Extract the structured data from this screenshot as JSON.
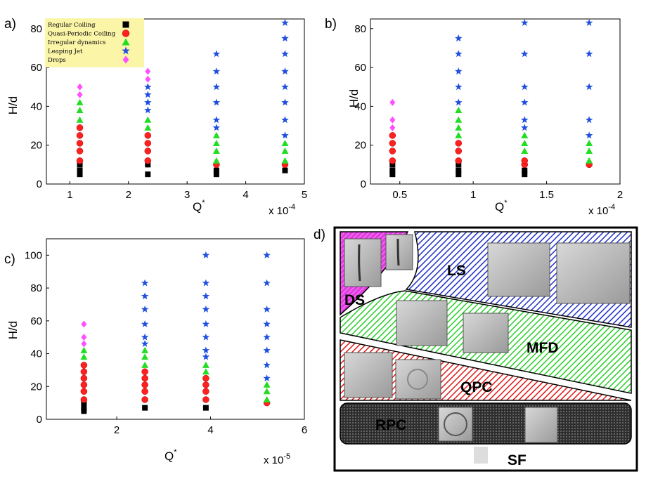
{
  "panels": {
    "a": {
      "label": "a)",
      "xlabel": "Q",
      "xlabel_sup": "*",
      "ylabel": "H/d",
      "exp_label": "x 10",
      "exp_sup": "-4"
    },
    "b": {
      "label": "b)",
      "xlabel": "Q",
      "xlabel_sup": "*",
      "ylabel": "H/d",
      "exp_label": "x 10",
      "exp_sup": "-4"
    },
    "c": {
      "label": "c)",
      "xlabel": "Q",
      "xlabel_sup": "*",
      "ylabel": "H/d",
      "exp_label": "x 10",
      "exp_sup": "-5"
    },
    "d": {
      "label": "d)"
    }
  },
  "legend": [
    {
      "label": "Regular Coiling",
      "marker": "square",
      "color": "#000000"
    },
    {
      "label": "Quasi-Periodic Coiling",
      "marker": "circle",
      "color": "#ff2020"
    },
    {
      "label": "Irregular dynamics",
      "marker": "triangle",
      "color": "#22dd22"
    },
    {
      "label": "Leaping Jet",
      "marker": "star",
      "color": "#2050e0"
    },
    {
      "label": "Drops",
      "marker": "diamond",
      "color": "#ff50ff"
    }
  ],
  "regime_diagram": {
    "regions": [
      {
        "label": "DS",
        "color": "#e040e0"
      },
      {
        "label": "LS",
        "color": "#3040d0"
      },
      {
        "label": "MFD",
        "color": "#30d030"
      },
      {
        "label": "QPC",
        "color": "#e02020"
      },
      {
        "label": "RPC",
        "color": "#333333"
      },
      {
        "label": "SF",
        "color": "#000000"
      }
    ]
  },
  "chart_data": [
    {
      "type": "scatter",
      "panel": "a",
      "xlabel": "Q*",
      "ylabel": "H/d",
      "xlim": [
        0.6,
        5
      ],
      "ylim": [
        0,
        85
      ],
      "xticks": [
        1,
        2,
        3,
        4,
        5
      ],
      "yticks": [
        0,
        20,
        40,
        60,
        80
      ],
      "grid": false,
      "legend_position": "top-left",
      "columns": [
        {
          "x": 1.17,
          "regular": [
            5,
            7,
            10
          ],
          "quasi": [
            12,
            17,
            21,
            25,
            29
          ],
          "irregular": [
            33,
            38,
            42
          ],
          "leaping": [],
          "drops": [
            46,
            50
          ]
        },
        {
          "x": 2.33,
          "regular": [
            5,
            10
          ],
          "quasi": [
            12,
            17,
            21,
            25
          ],
          "irregular": [
            29,
            33
          ],
          "leaping": [
            38,
            42,
            46,
            50
          ],
          "drops": [
            54,
            58
          ]
        },
        {
          "x": 3.5,
          "regular": [
            5,
            7
          ],
          "quasi": [
            10
          ],
          "irregular": [
            12,
            17,
            21,
            25
          ],
          "leaping": [
            29,
            33,
            42,
            50,
            58,
            67
          ],
          "drops": []
        },
        {
          "x": 4.67,
          "regular": [
            7
          ],
          "quasi": [
            10
          ],
          "irregular": [
            12,
            17,
            21
          ],
          "leaping": [
            25,
            33,
            42,
            50,
            58,
            67,
            75,
            83
          ],
          "drops": []
        }
      ]
    },
    {
      "type": "scatter",
      "panel": "b",
      "xlabel": "Q*",
      "ylabel": "H/d",
      "xlim": [
        0.3,
        2
      ],
      "ylim": [
        0,
        85
      ],
      "xticks": [
        0.5,
        1,
        1.5,
        2
      ],
      "yticks": [
        0,
        20,
        40,
        60,
        80
      ],
      "grid": false,
      "columns": [
        {
          "x": 0.45,
          "regular": [
            5,
            7,
            10
          ],
          "quasi": [
            12,
            17,
            21,
            25
          ],
          "irregular": [],
          "leaping": [],
          "drops": [
            29,
            33,
            42
          ]
        },
        {
          "x": 0.9,
          "regular": [
            5,
            7,
            10
          ],
          "quasi": [
            12,
            17,
            21
          ],
          "irregular": [
            25,
            29,
            33,
            38
          ],
          "leaping": [
            42,
            50,
            58,
            67,
            75
          ],
          "drops": []
        },
        {
          "x": 1.35,
          "regular": [
            5,
            7
          ],
          "quasi": [
            10,
            12
          ],
          "irregular": [
            17,
            21,
            25
          ],
          "leaping": [
            29,
            33,
            42,
            50,
            67,
            83
          ],
          "drops": []
        },
        {
          "x": 1.79,
          "regular": [],
          "quasi": [
            10
          ],
          "irregular": [
            12,
            17,
            21
          ],
          "leaping": [
            25,
            33,
            50,
            67,
            83
          ],
          "drops": []
        }
      ]
    },
    {
      "type": "scatter",
      "panel": "c",
      "xlabel": "Q*",
      "ylabel": "H/d",
      "xlim": [
        0.5,
        6
      ],
      "ylim": [
        0,
        110
      ],
      "xticks": [
        2,
        4,
        6
      ],
      "yticks": [
        0,
        20,
        40,
        60,
        80,
        100
      ],
      "grid": false,
      "columns": [
        {
          "x": 1.3,
          "regular": [
            5,
            7,
            10
          ],
          "quasi": [
            12,
            17,
            21,
            25,
            29,
            33
          ],
          "irregular": [
            38,
            42
          ],
          "leaping": [],
          "drops": [
            46,
            50,
            58
          ]
        },
        {
          "x": 2.6,
          "regular": [
            7
          ],
          "quasi": [
            12,
            17,
            21,
            25,
            29
          ],
          "irregular": [
            33,
            38,
            42
          ],
          "leaping": [
            46,
            50,
            58,
            67,
            75,
            83
          ],
          "drops": []
        },
        {
          "x": 3.9,
          "regular": [
            7
          ],
          "quasi": [
            12,
            17,
            21,
            25
          ],
          "irregular": [
            29,
            33
          ],
          "leaping": [
            38,
            42,
            50,
            58,
            67,
            75,
            83,
            100
          ],
          "drops": []
        },
        {
          "x": 5.2,
          "regular": [],
          "quasi": [
            10
          ],
          "irregular": [
            12,
            17,
            21
          ],
          "leaping": [
            25,
            33,
            42,
            50,
            58,
            67,
            83,
            100
          ],
          "drops": []
        }
      ]
    }
  ]
}
